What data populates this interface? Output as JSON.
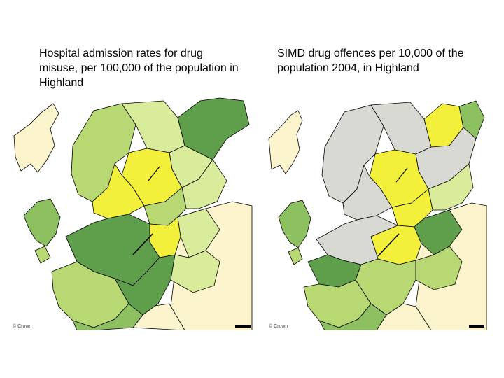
{
  "captions": {
    "left": "Hospital admission rates for drug misuse, per 100,000 of the population in Highland",
    "right": "SIMD drug offences per 10,000 of the population 2004, in Highland"
  },
  "colors": {
    "cream": "#fbf4cc",
    "pale_green": "#d9ec9c",
    "light_green": "#b7d873",
    "mid_green": "#8cc060",
    "dark_green": "#5f9e4b",
    "yellow": "#f2f03a",
    "grey": "#d9d9d3",
    "background": "#ffffff",
    "border": "#000000"
  },
  "maps": {
    "left": {
      "credit": "© Crown"
    },
    "right": {
      "credit": "© Crown"
    }
  }
}
